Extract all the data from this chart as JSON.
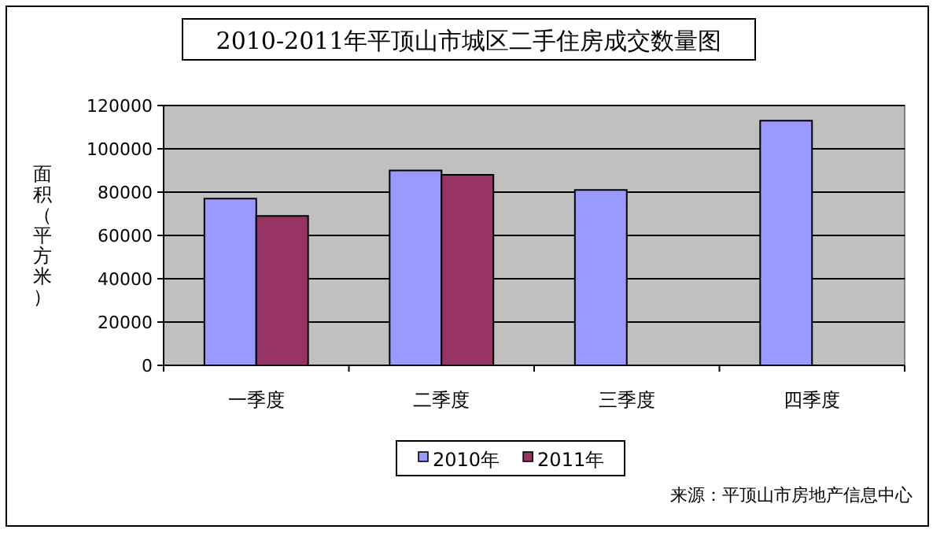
{
  "chart_data": {
    "type": "bar",
    "title": "2010-2011年平顶山市城区二手住房成交数量图",
    "ylabel": "面积（平方米）",
    "categories": [
      "一季度",
      "二季度",
      "三季度",
      "四季度"
    ],
    "series": [
      {
        "name": "2010年",
        "color": "#9999ff",
        "values": [
          77000,
          90000,
          81000,
          113000
        ]
      },
      {
        "name": "2011年",
        "color": "#993366",
        "values": [
          69000,
          88000,
          null,
          null
        ]
      }
    ],
    "ylim": [
      0,
      120000
    ],
    "yticks": [
      0,
      20000,
      40000,
      60000,
      80000,
      100000,
      120000
    ],
    "grid": "y",
    "legend": "bottom",
    "annotations": [
      "来源：平顶山市房地产信息中心"
    ]
  }
}
